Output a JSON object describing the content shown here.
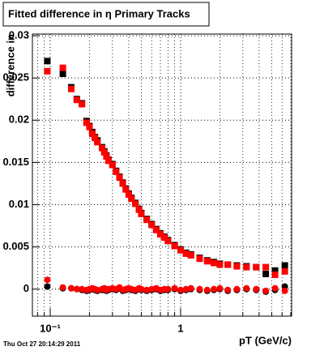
{
  "chart_data": {
    "type": "scatter",
    "title": "Fitted difference in  η  Primary Tracks",
    "x_label": "pT (GeV/c)",
    "y_label": "difference in",
    "timestamp": "Thu Oct 27 20:14:29 2011",
    "log_x": true,
    "grid": true,
    "xlim": [
      0.073,
      7.1
    ],
    "ylim": [
      -0.0032,
      0.0302
    ],
    "xticks": [
      {
        "value": 0.1,
        "label": "10⁻¹"
      },
      1
    ],
    "yticks": [
      0,
      0.005,
      0.01,
      0.015,
      0.02,
      0.025,
      0.03
    ],
    "x": [
      0.095,
      0.125,
      0.145,
      0.16,
      0.175,
      0.19,
      0.2,
      0.21,
      0.22,
      0.23,
      0.25,
      0.26,
      0.27,
      0.28,
      0.3,
      0.32,
      0.34,
      0.36,
      0.38,
      0.4,
      0.42,
      0.45,
      0.48,
      0.5,
      0.55,
      0.6,
      0.65,
      0.7,
      0.75,
      0.8,
      0.9,
      1.0,
      1.1,
      1.2,
      1.4,
      1.6,
      1.8,
      2.0,
      2.3,
      2.7,
      3.2,
      3.8,
      4.5,
      5.3,
      6.3
    ],
    "series": [
      {
        "color": "#000000",
        "marker": "square",
        "values": [
          0.027,
          0.0255,
          0.0239,
          0.0225,
          0.022,
          0.0199,
          0.0193,
          0.0186,
          0.018,
          0.0176,
          0.0168,
          0.0163,
          0.0158,
          0.0153,
          0.0148,
          0.014,
          0.0133,
          0.0126,
          0.0119,
          0.0113,
          0.0108,
          0.0102,
          0.0095,
          0.009,
          0.0083,
          0.0077,
          0.0071,
          0.0066,
          0.0062,
          0.0058,
          0.0052,
          0.0047,
          0.0043,
          0.0041,
          0.0037,
          0.0034,
          0.0032,
          0.003,
          0.0029,
          0.0028,
          0.0027,
          0.0026,
          0.0018,
          0.0022,
          0.0028
        ]
      },
      {
        "color": "#ff0000",
        "marker": "square",
        "values": [
          0.0258,
          0.0262,
          0.0237,
          0.0224,
          0.0219,
          0.0197,
          0.0192,
          0.0184,
          0.0179,
          0.0174,
          0.0167,
          0.0162,
          0.0157,
          0.0152,
          0.0147,
          0.0139,
          0.0132,
          0.0125,
          0.0118,
          0.0112,
          0.0107,
          0.0101,
          0.0094,
          0.0089,
          0.0082,
          0.0076,
          0.007,
          0.0065,
          0.0061,
          0.0057,
          0.0051,
          0.0046,
          0.0042,
          0.004,
          0.0036,
          0.0033,
          0.0031,
          0.0029,
          0.0029,
          0.0027,
          0.0026,
          0.0026,
          0.0026,
          0.0017,
          0.0021
        ]
      },
      {
        "color": "#000000",
        "marker": "circle",
        "values": [
          0.0003,
          0.0001,
          0.0001,
          0,
          -0.0001,
          -0.0002,
          -0.0001,
          0,
          -0.0001,
          -0.0002,
          -0.0001,
          0,
          -0.0002,
          -0.0001,
          0,
          -0.0001,
          0.0001,
          -0.0002,
          -0.0001,
          0,
          -0.0001,
          -0.0002,
          0,
          -0.0001,
          -0.0002,
          -0.0001,
          0,
          -0.0002,
          -0.0001,
          -0.0001,
          0,
          -0.0002,
          -0.0001,
          0,
          -0.0001,
          -0.0002,
          -0.0001,
          0,
          -0.0002,
          -0.0001,
          0,
          -0.0001,
          -0.0003,
          -0.0001,
          0.0003
        ]
      },
      {
        "color": "#ff0000",
        "marker": "circle",
        "values": [
          0.0011,
          0.0002,
          0.0001,
          0,
          0,
          -0.0001,
          0,
          0.0001,
          0,
          -0.0001,
          0,
          0.0001,
          -0.0001,
          0,
          0.0001,
          0,
          0.0002,
          -0.0001,
          0,
          0.0001,
          0,
          -0.0001,
          0.0001,
          0,
          -0.0001,
          0,
          0.0001,
          -0.0001,
          0,
          0,
          0.0001,
          -0.0001,
          0,
          0.0001,
          0,
          -0.0001,
          0,
          0.0001,
          -0.0001,
          0,
          0.0001,
          0,
          -0.0002,
          0.0001,
          -0.0002
        ]
      }
    ]
  }
}
